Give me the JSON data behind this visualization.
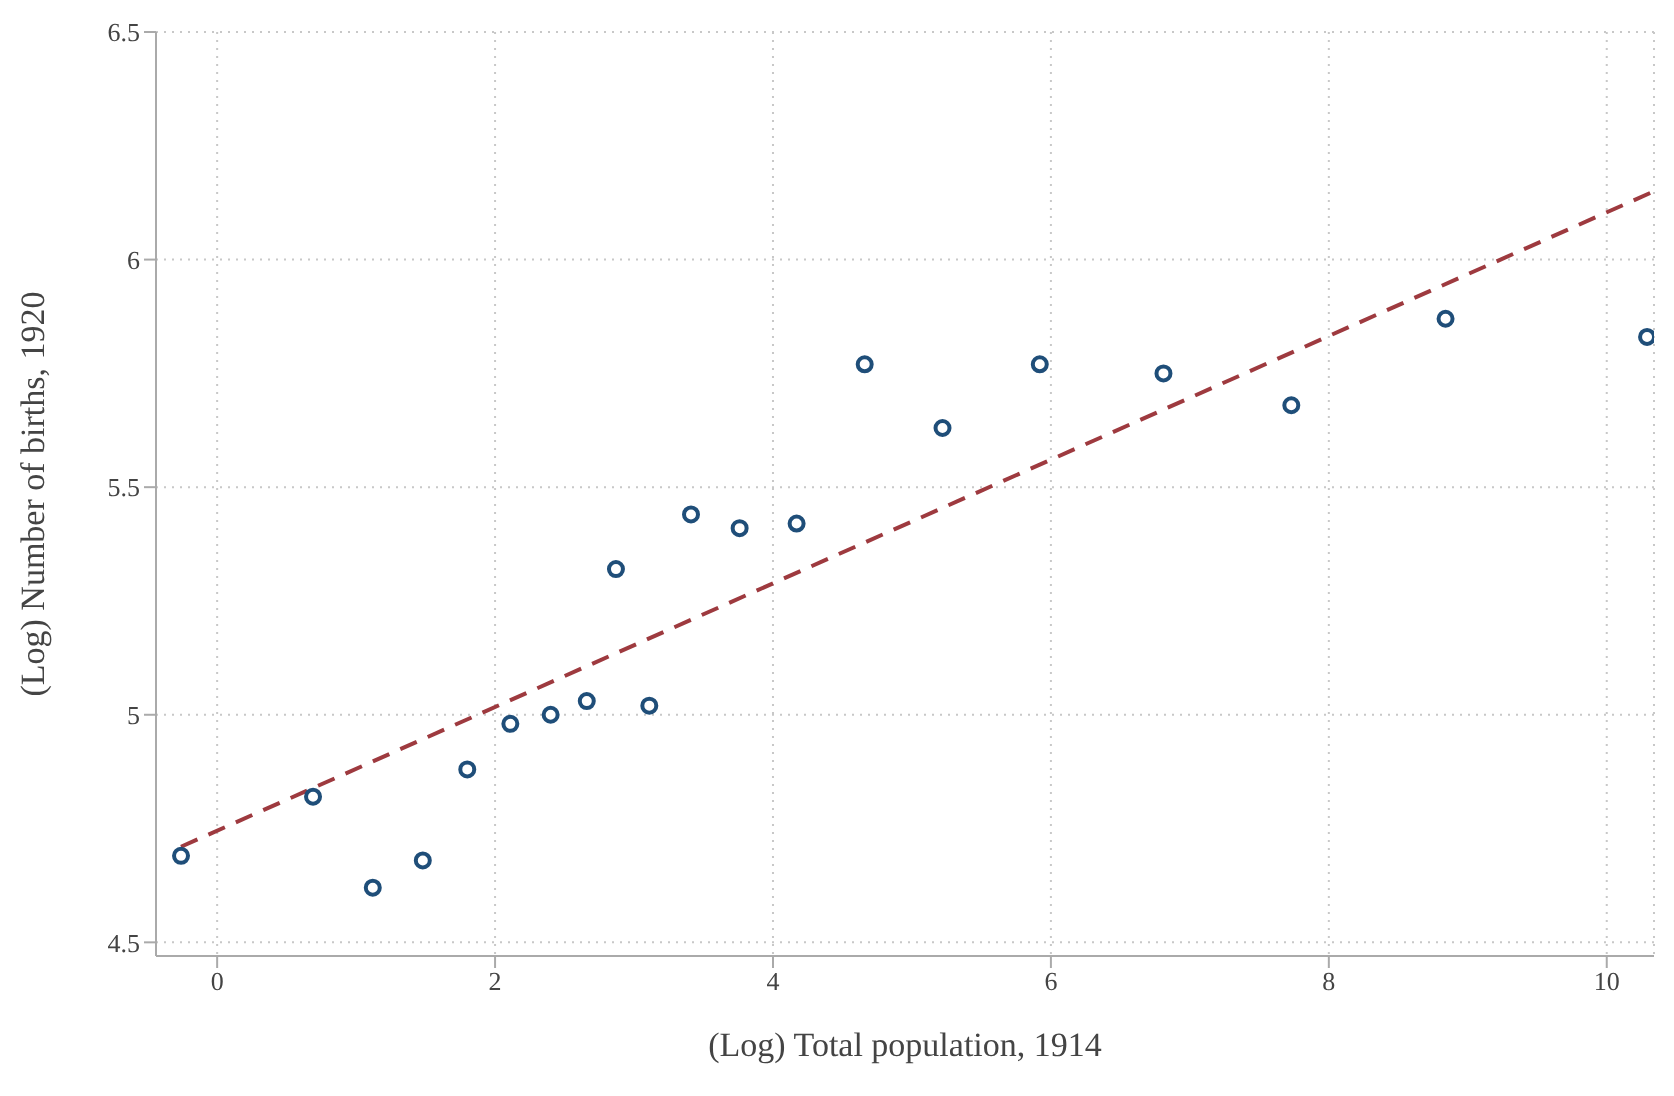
{
  "chart_data": {
    "type": "scatter",
    "xlabel": "(Log) Total population, 1914",
    "ylabel": "(Log) Number of births, 1920",
    "xlim": [
      -0.44,
      10.34
    ],
    "ylim": [
      4.47,
      6.5
    ],
    "xticks": [
      0,
      2,
      4,
      6,
      8,
      10
    ],
    "yticks": [
      4.5,
      5,
      5.5,
      6,
      6.5
    ],
    "grid": true,
    "legend": false,
    "series": [
      {
        "color": "#1f4e79",
        "marker": "circle",
        "x": [
          -0.26,
          0.69,
          1.12,
          1.48,
          1.8,
          2.11,
          2.4,
          2.66,
          2.87,
          3.11,
          3.41,
          3.76,
          4.17,
          4.66,
          5.22,
          5.92,
          6.81,
          7.73,
          8.84,
          10.29
        ],
        "values": [
          4.69,
          4.82,
          4.62,
          4.68,
          4.88,
          4.98,
          5.0,
          5.03,
          5.32,
          5.02,
          5.44,
          5.41,
          5.42,
          5.77,
          5.63,
          5.77,
          5.75,
          5.68,
          5.87,
          5.83
        ]
      },
      {
        "type": "line",
        "color": "#9e3a3f",
        "marker": "none",
        "line_style": "dashed",
        "x": [
          -0.26,
          10.34
        ],
        "values": [
          4.71,
          6.15
        ]
      }
    ]
  }
}
